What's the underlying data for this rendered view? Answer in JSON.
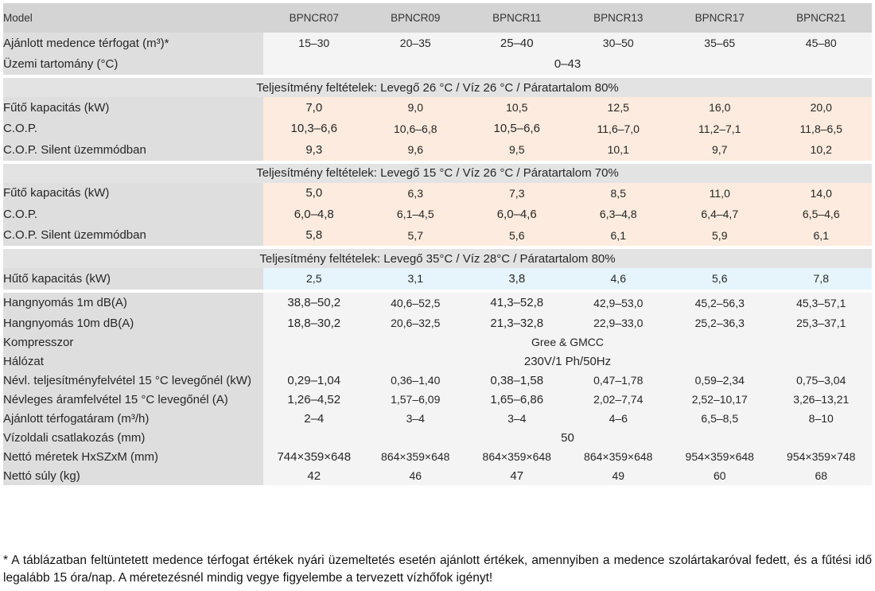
{
  "header": {
    "model_label": "Model",
    "models": [
      "BPNCR07",
      "BPNCR09",
      "BPNCR11",
      "BPNCR13",
      "BPNCR17",
      "BPNCR21"
    ]
  },
  "general": {
    "pool_volume": {
      "label": "Ajánlott medence térfogat (m³)*",
      "values": [
        "15–30",
        "20–35",
        "25–40",
        "30–50",
        "35–65",
        "45–80"
      ]
    },
    "operating_range": {
      "label": "Üzemi tartomány (°C)",
      "value": "0–43"
    }
  },
  "section1": {
    "title": "Teljesítmény feltételek: Levegő 26 °C / Víz 26 °C / Páratartalom 80%",
    "heating_capacity": {
      "label": "Fűtő kapacitás (kW)",
      "values": [
        "7,0",
        "9,0",
        "10,5",
        "12,5",
        "16,0",
        "20,0"
      ]
    },
    "cop": {
      "label": "C.O.P.",
      "values": [
        "10,3–6,6",
        "10,6–6,8",
        "10,5–6,6",
        "11,6–7,0",
        "11,2–7,1",
        "11,8–6,5"
      ]
    },
    "cop_silent": {
      "label": "C.O.P. Silent üzemmódban",
      "values": [
        "9,3",
        "9,6",
        "9,5",
        "10,1",
        "9,7",
        "10,2"
      ]
    }
  },
  "section2": {
    "title": "Teljesítmény feltételek: Levegő 15 °C / Víz 26 °C / Páratartalom 70%",
    "heating_capacity": {
      "label": "Fűtő kapacitás (kW)",
      "values": [
        "5,0",
        "6,3",
        "7,3",
        "8,5",
        "11,0",
        "14,0"
      ]
    },
    "cop": {
      "label": "C.O.P.",
      "values": [
        "6,0–4,8",
        "6,1–4,5",
        "6,0–4,6",
        "6,3–4,8",
        "6,4–4,7",
        "6,5–4,6"
      ]
    },
    "cop_silent": {
      "label": "C.O.P. Silent üzemmódban",
      "values": [
        "5,8",
        "5,7",
        "5,6",
        "6,1",
        "5,9",
        "6,1"
      ]
    }
  },
  "section3": {
    "title": "Teljesítmény feltételek: Levegő 35°C / Víz 28°C / Páratartalom 80%",
    "cooling_capacity": {
      "label": "Hűtő kapacitás (kW)",
      "values": [
        "2,5",
        "3,1",
        "3,8",
        "4,6",
        "5,6",
        "7,8"
      ]
    }
  },
  "specs": {
    "noise_1m": {
      "label": "Hangnyomás 1m dB(A)",
      "values": [
        "38,8–50,2",
        "40,6–52,5",
        "41,3–52,8",
        "42,9–53,0",
        "45,2–56,3",
        "45,3–57,1"
      ]
    },
    "noise_10m": {
      "label": "Hangnyomás 10m dB(A)",
      "values": [
        "18,8–30,2",
        "20,6–32,5",
        "21,3–32,8",
        "22,9–33,0",
        "25,2–36,3",
        "25,3–37,1"
      ]
    },
    "compressor": {
      "label": "Kompresszor",
      "value": "Gree & GMCC"
    },
    "network": {
      "label": "Hálózat",
      "value": "230V/1 Ph/50Hz"
    },
    "power_input": {
      "label": "Névl. teljesítményfelvétel 15 °C levegőnél (kW)",
      "values": [
        "0,29–1,04",
        "0,36–1,40",
        "0,38–1,58",
        "0,47–1,78",
        "0,59–2,34",
        "0,75–3,04"
      ]
    },
    "current_input": {
      "label": "Névleges áramfelvétel 15 °C levegőnél (A)",
      "values": [
        "1,26–4,52",
        "1,57–6,09",
        "1,65–6,86",
        "2,02–7,74",
        "2,52–10,17",
        "3,26–13,21"
      ]
    },
    "flow_rate": {
      "label": "Ajánlott térfogatáram (m³/h)",
      "values": [
        "2–4",
        "3–4",
        "3–4",
        "4–6",
        "6,5–8,5",
        "8–10"
      ]
    },
    "water_connection": {
      "label": "Vízoldali csatlakozás (mm)",
      "value": "50"
    },
    "net_dimensions": {
      "label": "Nettó méretek HxSZxM (mm)",
      "values": [
        "744×359×648",
        "864×359×648",
        "864×359×648",
        "864×359×648",
        "954×359×648",
        "954×359×748"
      ]
    },
    "net_weight": {
      "label": "Nettó súly (kg)",
      "values": [
        "42",
        "46",
        "47",
        "49",
        "60",
        "68"
      ]
    }
  },
  "footnote": "* A táblázatban feltüntetett medence térfogat értékek nyári üzemeltetés esetén ajánlott értékek, amennyiben a medence szolártakaróval fedett, és a fűtési idő legalább 15 óra/nap. A méretezésnél mindig vegye figyelembe a tervezett vízhőfok igényt!"
}
